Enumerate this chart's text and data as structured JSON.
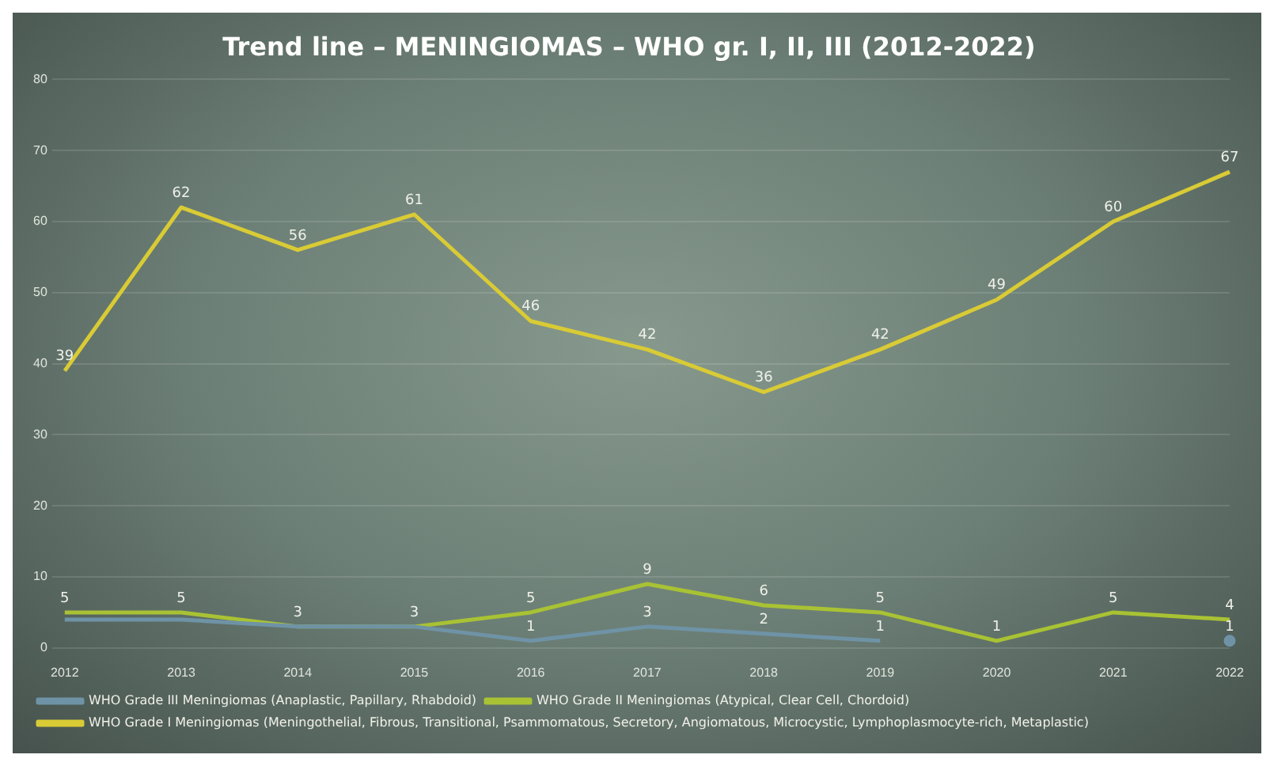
{
  "chart_data": {
    "type": "line",
    "title": "Trend line – MENINGIOMAS – WHO gr. I, II, III (2012-2022)",
    "categories": [
      "2012",
      "2013",
      "2014",
      "2015",
      "2016",
      "2017",
      "2018",
      "2019",
      "2020",
      "2021",
      "2022"
    ],
    "series": [
      {
        "name": "WHO Grade I Meningiomas (Meningothelial, Fibrous, Transitional, Psammomatous, Secretory, Angiomatous, Microcystic, Lymphoplasmocyte-rich, Metaplastic)",
        "color": "#d9cb35",
        "values": [
          39,
          62,
          56,
          61,
          46,
          42,
          36,
          42,
          49,
          60,
          67
        ],
        "value_labels": [
          "39",
          "62",
          "56",
          "61",
          "46",
          "42",
          "36",
          "42",
          "49",
          "60",
          "67"
        ]
      },
      {
        "name": "WHO Grade II Meningiomas (Atypical, Clear Cell, Chordoid)",
        "color": "#a9c234",
        "values": [
          5,
          5,
          3,
          3,
          5,
          9,
          6,
          5,
          1,
          5,
          4
        ],
        "value_labels": [
          "5",
          "5",
          "3",
          "3",
          "5",
          "9",
          "6",
          "5",
          "1",
          "5",
          "4"
        ]
      },
      {
        "name": "WHO Grade III Meningiomas (Anaplastic, Papillary, Rhabdoid)",
        "color": "#6f93a6",
        "values": [
          4,
          4,
          3,
          3,
          1,
          3,
          2,
          1,
          null,
          null,
          1
        ],
        "value_labels": [
          null,
          null,
          null,
          null,
          "1",
          "3",
          "2",
          "1",
          null,
          null,
          "1"
        ]
      }
    ],
    "ylim": [
      0,
      80
    ],
    "yticks": [
      0,
      10,
      20,
      30,
      40,
      50,
      60,
      70,
      80
    ],
    "grid": "y",
    "legend": "bottom"
  }
}
